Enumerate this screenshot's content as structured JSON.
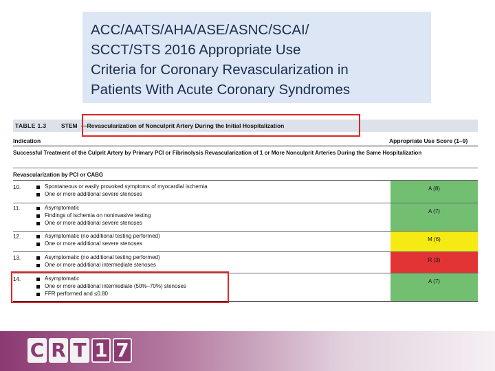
{
  "slide_title": {
    "lines": [
      "ACC/AATS/AHA/ASE/ASNC/SCAI/",
      "SCCT/STS 2016 Appropriate Use",
      "Criteria for Coronary Revascularization in",
      "Patients With Acute Coronary Syndromes"
    ]
  },
  "table": {
    "label": "TABLE 1.3",
    "stem": "STEM",
    "subject": "—Revascularization of Nonculprit Artery During the Initial Hospitalization",
    "col_indication": "Indication",
    "col_score": "Appropriate Use Score (1–9)",
    "section1": "Successful Treatment of the Culprit Artery by Primary PCI or Fibrinolysis Revascularization of 1 or More Nonculprit Arteries During the Same Hospitalization",
    "section2": "Revascularization by PCI or CABG",
    "rows": [
      {
        "num": "10.",
        "bullets": [
          "Spontaneous or easily provoked symptoms of myocardial ischemia",
          "One or more additional severe stenoses"
        ],
        "score": "A (8)",
        "color": "#72bf72"
      },
      {
        "num": "11.",
        "bullets": [
          "Asymptomatic",
          "Findings of ischemia on noninvasive testing",
          "One or more additional severe stenoses"
        ],
        "score": "A (7)",
        "color": "#72bf72"
      },
      {
        "num": "12.",
        "bullets": [
          "Asymptomatic (no additional testing performed)",
          "One or more additional severe stenoses"
        ],
        "score": "M (6)",
        "color": "#f5ea14"
      },
      {
        "num": "13.",
        "bullets": [
          "Asymptomatic (no additional testing performed)",
          "One or more additional intermediate stenoses"
        ],
        "score": "R (3)",
        "color": "#e23434"
      },
      {
        "num": "14.",
        "bullets": [
          "Asymptomatic",
          "One or more additional intermediate (50%–70%) stenoses",
          "FFR performed and ≤0.80"
        ],
        "score": "A (7)",
        "color": "#72bf72"
      }
    ]
  },
  "logo": {
    "letters": [
      "C",
      "R",
      "T"
    ],
    "digits": [
      "1",
      "7"
    ]
  }
}
